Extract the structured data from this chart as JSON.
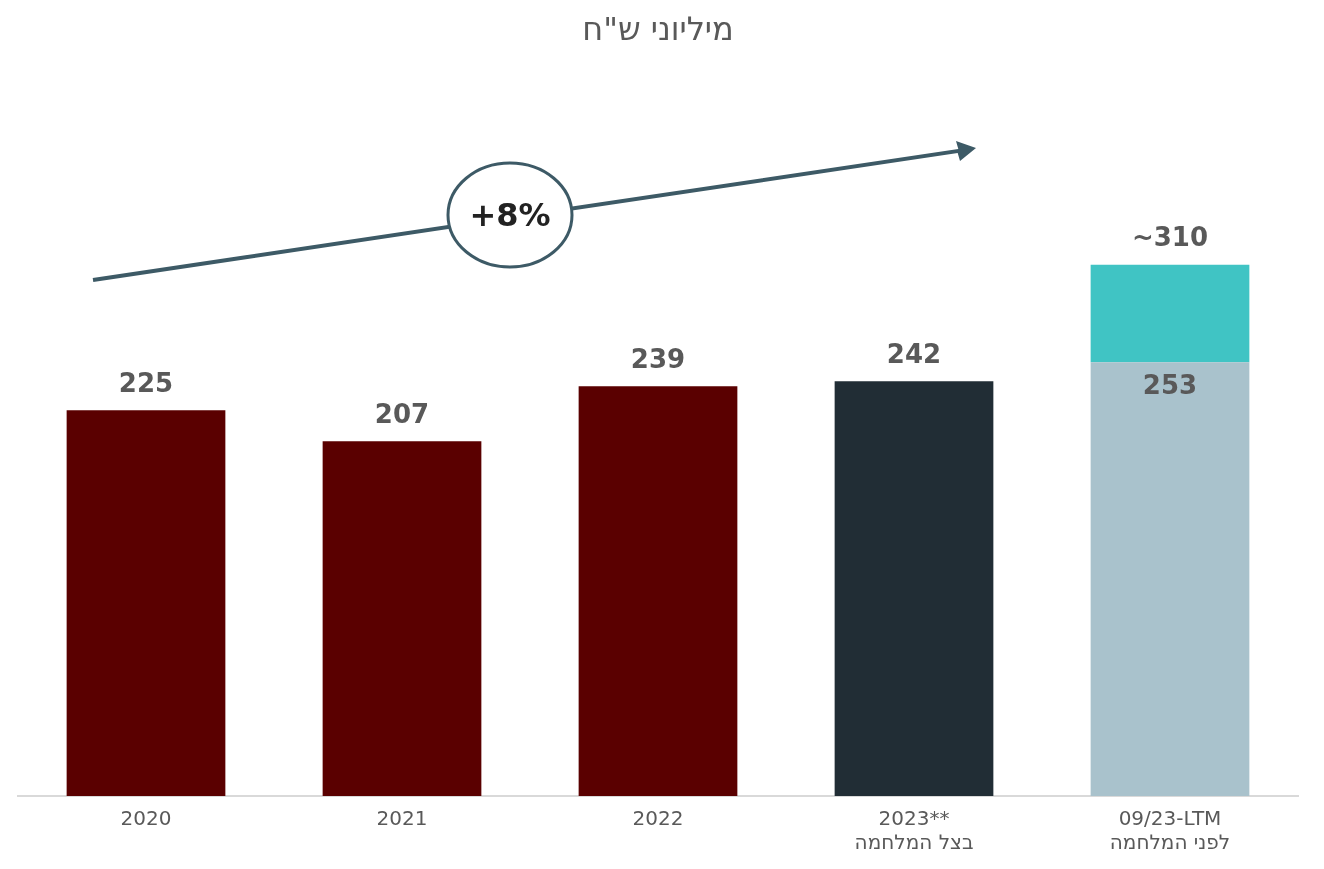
{
  "chart_data": {
    "type": "bar",
    "title": "מיליוני ש\"ח",
    "stacked": true,
    "legend": false,
    "grid": false,
    "categories": [
      "2020",
      "2021",
      "2022",
      "2023**\nבצל המלחמה",
      "09/23-LTM\nלפני המלחמה"
    ],
    "series": [
      {
        "colors": [
          "#5a0000",
          "#5a0000",
          "#5a0000",
          "#212d35",
          "#a9c2cc"
        ],
        "values": [
          225,
          207,
          239,
          242,
          253
        ],
        "value_labels": [
          "225",
          "207",
          "239",
          "242",
          "253"
        ]
      },
      {
        "color": "#40c4c4",
        "values": [
          null,
          null,
          null,
          null,
          57
        ]
      }
    ],
    "totals": [
      null,
      null,
      null,
      null,
      "~310"
    ],
    "annotations": [
      "+8%"
    ]
  }
}
